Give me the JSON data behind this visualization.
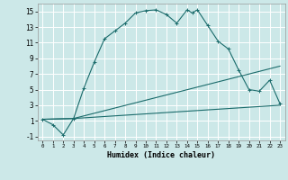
{
  "title": "",
  "xlabel": "Humidex (Indice chaleur)",
  "ylabel": "",
  "bg_color": "#cce8e8",
  "grid_color": "#ffffff",
  "line_color": "#1a6b6b",
  "xlim": [
    -0.5,
    23.5
  ],
  "ylim": [
    -1.5,
    16
  ],
  "xticks": [
    0,
    1,
    2,
    3,
    4,
    5,
    6,
    7,
    8,
    9,
    10,
    11,
    12,
    13,
    14,
    15,
    16,
    17,
    18,
    19,
    20,
    21,
    22,
    23
  ],
  "yticks": [
    -1,
    1,
    3,
    5,
    7,
    9,
    11,
    13,
    15
  ],
  "curve1_x": [
    0,
    1,
    2,
    3,
    4,
    5,
    6,
    7,
    8,
    9,
    10,
    11,
    12,
    13,
    14,
    14.5,
    15,
    16,
    17,
    18,
    19,
    20,
    21,
    22,
    23
  ],
  "curve1_y": [
    1.2,
    0.5,
    -0.8,
    1.3,
    5.2,
    8.5,
    11.5,
    12.5,
    13.5,
    14.8,
    15.1,
    15.2,
    14.6,
    13.5,
    15.2,
    14.8,
    15.2,
    13.2,
    11.2,
    10.2,
    7.5,
    5.0,
    4.8,
    6.2,
    3.2
  ],
  "curve2_x": [
    0,
    3,
    23
  ],
  "curve2_y": [
    1.2,
    1.3,
    8.0
  ],
  "curve3_x": [
    0,
    3,
    23
  ],
  "curve3_y": [
    1.2,
    1.3,
    3.0
  ],
  "marker": "+"
}
